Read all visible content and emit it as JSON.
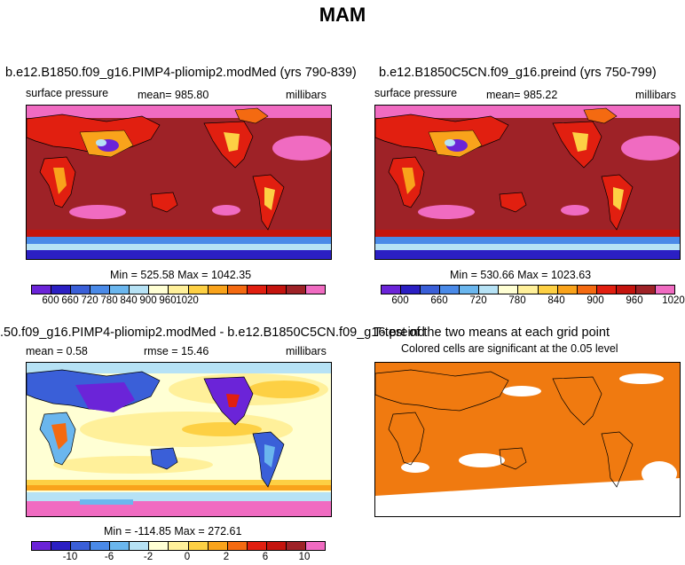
{
  "title": "MAM",
  "colors": {
    "scale": [
      "#6b24d8",
      "#2b1fc3",
      "#3a5fd8",
      "#4a8ae8",
      "#6ab6ee",
      "#b6e2f5",
      "#ffffd4",
      "#fff09a",
      "#fdd044",
      "#f9a31b",
      "#f46a11",
      "#e11f10",
      "#c4140e",
      "#9e2227",
      "#f06bc1"
    ],
    "ocean_pos": "#9e2227",
    "ttest_fill": "#f07a10"
  },
  "panels": {
    "top_left": {
      "title": "b.e12.B1850.f09_g16.PIMP4-pliomip2.modMed (yrs 790-839)",
      "left_label": "surface pressure",
      "mean_label": "mean= 985.80",
      "units": "millibars",
      "minmax": "Min = 525.58 Max = 1042.35",
      "ticks": [
        "600",
        "660",
        "720",
        "780",
        "840",
        "900",
        "960",
        "1020"
      ]
    },
    "top_right": {
      "title": "b.e12.B1850C5CN.f09_g16.preind (yrs 750-799)",
      "left_label": "surface pressure",
      "mean_label": "mean= 985.22",
      "units": "millibars",
      "minmax": "Min = 530.66 Max = 1023.63",
      "ticks": [
        "600",
        "660",
        "720",
        "780",
        "840",
        "900",
        "960",
        "1020"
      ]
    },
    "bottom_left": {
      "title": ".50.f09_g16.PIMP4-pliomip2.modMed - b.e12.B1850C5CN.f09_g16.preind",
      "mean_label": "mean =    0.58",
      "rmse_label": "rmse =  15.46",
      "units": "millibars",
      "minmax": "Min = -114.85 Max = 272.61",
      "ticks": [
        "-10",
        "-6",
        "-2",
        "0",
        "2",
        "6",
        "10"
      ]
    },
    "bottom_right": {
      "title": "T-test of the two means at each grid point",
      "subtitle": "Colored cells are significant at the 0.05 level"
    }
  }
}
